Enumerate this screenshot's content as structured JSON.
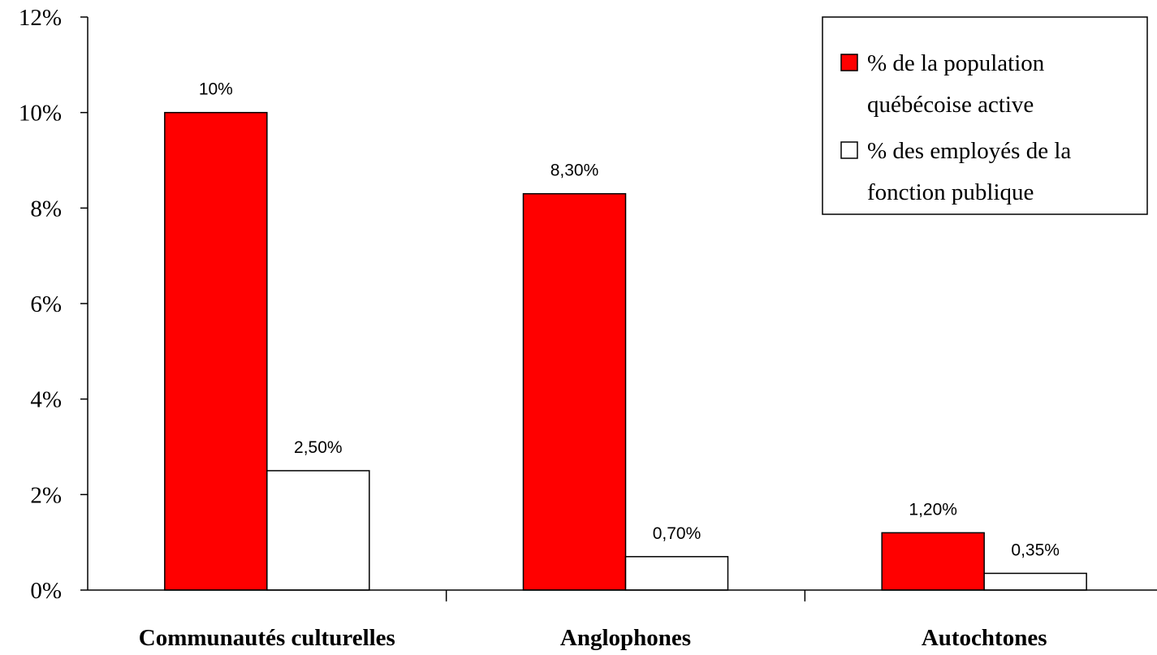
{
  "chart_data": {
    "type": "bar",
    "categories": [
      "Communautés culturelles",
      "Anglophones",
      "Autochtones"
    ],
    "series": [
      {
        "name": "% de la population québécoise active",
        "legend_lines": [
          "% de la population",
          "québécoise active"
        ],
        "color": "#ff0000",
        "values": [
          10,
          8.3,
          1.2
        ],
        "labels": [
          "10%",
          "8,30%",
          "1,20%"
        ]
      },
      {
        "name": "% des employés de la fonction publique",
        "legend_lines": [
          "% des employés de la",
          "fonction publique"
        ],
        "color": "#ffffff",
        "values": [
          2.5,
          0.7,
          0.35
        ],
        "labels": [
          "2,50%",
          "0,70%",
          "0,35%"
        ]
      }
    ],
    "ylim": [
      0,
      12
    ],
    "yticks": [
      0,
      2,
      4,
      6,
      8,
      10,
      12
    ],
    "ytick_labels": [
      "0%",
      "2%",
      "4%",
      "6%",
      "8%",
      "10%",
      "12%"
    ],
    "grid": false,
    "legend_position": "top-right"
  }
}
